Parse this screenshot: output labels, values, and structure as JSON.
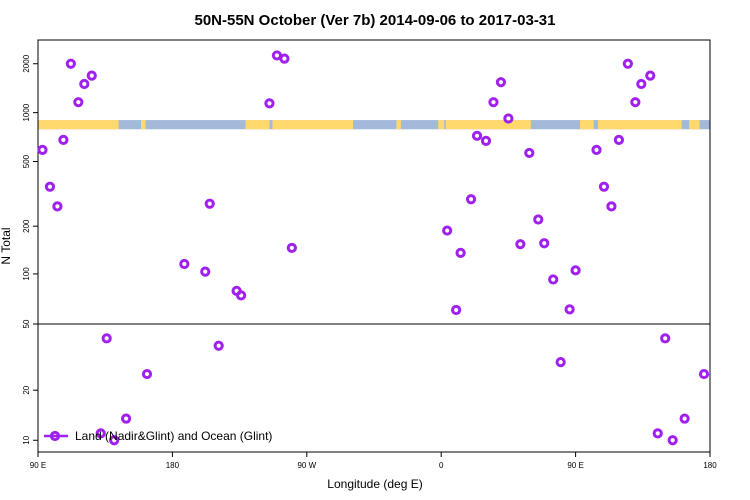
{
  "chart_data": {
    "type": "scatter",
    "title": "50N-55N October (Ver 7b)   2014-09-06 to 2017-03-31",
    "xlabel": "Longitude (deg E)",
    "ylabel": "N Total",
    "x_ticks": [
      {
        "value": 90,
        "label": "90 E"
      },
      {
        "value": 180,
        "label": "180"
      },
      {
        "value": 270,
        "label": "90 W"
      },
      {
        "value": 360,
        "label": "0"
      },
      {
        "value": 450,
        "label": "90 E"
      },
      {
        "value": 540,
        "label": "180"
      }
    ],
    "xlim": [
      90,
      540
    ],
    "y_scale": "log",
    "y_ticks_upper": [
      {
        "value": 200,
        "label": "200"
      },
      {
        "value": 500,
        "label": "500"
      },
      {
        "value": 1000,
        "label": "1000"
      },
      {
        "value": 2000,
        "label": "2000"
      }
    ],
    "y_ticks_lower": [
      {
        "value": 10,
        "label": "10"
      },
      {
        "value": 20,
        "label": "20"
      },
      {
        "value": 50,
        "label": "50"
      },
      {
        "value": 100,
        "label": "100"
      }
    ],
    "ylim_upper": [
      50,
      2800
    ],
    "ylim_lower": [
      8.5,
      50
    ],
    "grid": false,
    "legend_position": "bottom-left",
    "marker_color": "#a020f0",
    "land_color": "#ffd86e",
    "ocean_color": "#a3b9d9",
    "series": [
      {
        "name": "Land (Nadir&Glint) and Ocean (Glint)",
        "points": [
          [
            93,
            590
          ],
          [
            98,
            350
          ],
          [
            103,
            265
          ],
          [
            107,
            680
          ],
          [
            112,
            2000
          ],
          [
            117,
            1160
          ],
          [
            121,
            1500
          ],
          [
            126,
            1690
          ],
          [
            132,
            11
          ],
          [
            136,
            41
          ],
          [
            141,
            10
          ],
          [
            149,
            13.5
          ],
          [
            163,
            25
          ],
          [
            188,
            117
          ],
          [
            202,
            105
          ],
          [
            205,
            275
          ],
          [
            211,
            37
          ],
          [
            223,
            80
          ],
          [
            226,
            75
          ],
          [
            245,
            1140
          ],
          [
            250,
            2250
          ],
          [
            255,
            2150
          ],
          [
            260,
            147
          ],
          [
            364,
            188
          ],
          [
            370,
            61
          ],
          [
            373,
            137
          ],
          [
            380,
            293
          ],
          [
            384,
            720
          ],
          [
            390,
            670
          ],
          [
            395,
            1160
          ],
          [
            400,
            1540
          ],
          [
            405,
            920
          ],
          [
            413,
            155
          ],
          [
            419,
            565
          ],
          [
            425,
            220
          ],
          [
            429,
            157
          ],
          [
            435,
            94
          ],
          [
            440,
            29.5
          ],
          [
            446,
            61.5
          ],
          [
            450,
            107
          ],
          [
            464,
            590
          ],
          [
            469,
            350
          ],
          [
            474,
            265
          ],
          [
            479,
            680
          ],
          [
            485,
            2000
          ],
          [
            490,
            1160
          ],
          [
            494,
            1500
          ],
          [
            500,
            1690
          ],
          [
            505,
            11
          ],
          [
            510,
            41
          ],
          [
            515,
            10
          ],
          [
            523,
            13.5
          ],
          [
            536,
            25
          ]
        ]
      }
    ],
    "landmask_band_value_range": [
      790,
      900
    ]
  }
}
